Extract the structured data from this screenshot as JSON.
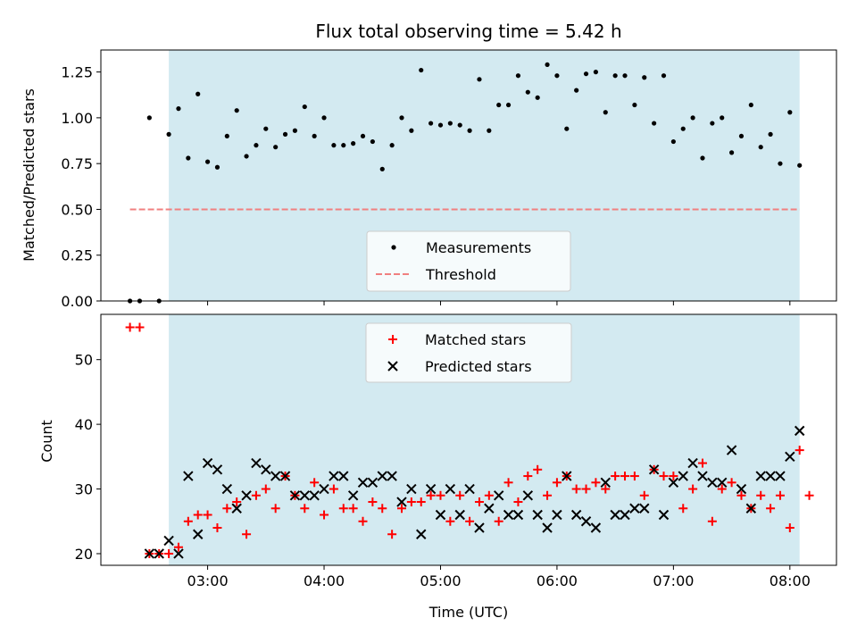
{
  "chart_data": [
    {
      "type": "scatter",
      "title": "Flux total observing time = 5.42 h",
      "xlabel": "",
      "ylabel": "Matched/Predicted stars",
      "x_unit": "time (UTC)",
      "xlim": [
        "02:05",
        "08:24"
      ],
      "ylim": [
        0,
        1.37
      ],
      "x_ticks": [
        "03:00",
        "04:00",
        "05:00",
        "06:00",
        "07:00",
        "08:00"
      ],
      "y_ticks": [
        "0.00",
        "0.25",
        "0.50",
        "0.75",
        "1.00",
        "1.25"
      ],
      "observing_window": [
        "02:40",
        "08:05"
      ],
      "window_color": "#d3eaf1",
      "threshold": {
        "name": "Threshold",
        "value": 0.5,
        "x_range": [
          "02:20",
          "08:05"
        ],
        "color": "#f08080"
      },
      "legend": {
        "placement": "lower-center",
        "entries": [
          "Measurements",
          "Threshold"
        ]
      },
      "series": [
        {
          "name": "Measurements",
          "color": "#000000",
          "points": [
            [
              "02:20",
              0.0
            ],
            [
              "02:25",
              0.0
            ],
            [
              "02:30",
              1.0
            ],
            [
              "02:35",
              0.0
            ],
            [
              "02:40",
              0.91
            ],
            [
              "02:45",
              1.05
            ],
            [
              "02:50",
              0.78
            ],
            [
              "02:55",
              1.13
            ],
            [
              "03:00",
              0.76
            ],
            [
              "03:05",
              0.73
            ],
            [
              "03:10",
              0.9
            ],
            [
              "03:15",
              1.04
            ],
            [
              "03:20",
              0.79
            ],
            [
              "03:25",
              0.85
            ],
            [
              "03:30",
              0.94
            ],
            [
              "03:35",
              0.84
            ],
            [
              "03:40",
              0.91
            ],
            [
              "03:45",
              0.93
            ],
            [
              "03:50",
              1.06
            ],
            [
              "03:55",
              0.9
            ],
            [
              "04:00",
              1.0
            ],
            [
              "04:05",
              0.85
            ],
            [
              "04:10",
              0.85
            ],
            [
              "04:15",
              0.86
            ],
            [
              "04:20",
              0.9
            ],
            [
              "04:25",
              0.87
            ],
            [
              "04:30",
              0.72
            ],
            [
              "04:35",
              0.85
            ],
            [
              "04:40",
              1.0
            ],
            [
              "04:45",
              0.93
            ],
            [
              "04:50",
              1.26
            ],
            [
              "04:55",
              0.97
            ],
            [
              "05:00",
              0.96
            ],
            [
              "05:05",
              0.97
            ],
            [
              "05:10",
              0.96
            ],
            [
              "05:15",
              0.93
            ],
            [
              "05:20",
              1.21
            ],
            [
              "05:25",
              0.93
            ],
            [
              "05:30",
              1.07
            ],
            [
              "05:35",
              1.07
            ],
            [
              "05:40",
              1.23
            ],
            [
              "05:45",
              1.14
            ],
            [
              "05:50",
              1.11
            ],
            [
              "05:55",
              1.29
            ],
            [
              "06:00",
              1.23
            ],
            [
              "06:05",
              0.94
            ],
            [
              "06:10",
              1.15
            ],
            [
              "06:15",
              1.24
            ],
            [
              "06:20",
              1.25
            ],
            [
              "06:25",
              1.03
            ],
            [
              "06:30",
              1.23
            ],
            [
              "06:35",
              1.23
            ],
            [
              "06:40",
              1.07
            ],
            [
              "06:45",
              1.22
            ],
            [
              "06:50",
              0.97
            ],
            [
              "06:55",
              1.23
            ],
            [
              "07:00",
              0.87
            ],
            [
              "07:05",
              0.94
            ],
            [
              "07:10",
              1.0
            ],
            [
              "07:15",
              0.78
            ],
            [
              "07:20",
              0.97
            ],
            [
              "07:25",
              1.0
            ],
            [
              "07:30",
              0.81
            ],
            [
              "07:35",
              0.9
            ],
            [
              "07:40",
              1.07
            ],
            [
              "07:45",
              0.84
            ],
            [
              "07:50",
              0.91
            ],
            [
              "07:55",
              0.75
            ],
            [
              "08:00",
              1.03
            ],
            [
              "08:05",
              0.74
            ]
          ]
        }
      ]
    },
    {
      "type": "scatter",
      "title": "",
      "xlabel": "Time (UTC)",
      "ylabel": "Count",
      "xlim": [
        "02:05",
        "08:24"
      ],
      "ylim": [
        18.2,
        57
      ],
      "x_ticks": [
        "03:00",
        "04:00",
        "05:00",
        "06:00",
        "07:00",
        "08:00"
      ],
      "y_ticks": [
        "20",
        "30",
        "40",
        "50"
      ],
      "observing_window": [
        "02:40",
        "08:05"
      ],
      "window_color": "#d3eaf1",
      "legend": {
        "placement": "upper-center",
        "entries": [
          "Matched stars",
          "Predicted stars"
        ]
      },
      "series": [
        {
          "name": "Matched stars",
          "marker": "plus",
          "color": "#ff0000",
          "points": [
            [
              "02:20",
              55
            ],
            [
              "02:25",
              55
            ],
            [
              "02:30",
              20
            ],
            [
              "02:35",
              20
            ],
            [
              "02:40",
              20
            ],
            [
              "02:45",
              21
            ],
            [
              "02:50",
              25
            ],
            [
              "02:55",
              26
            ],
            [
              "03:00",
              26
            ],
            [
              "03:05",
              24
            ],
            [
              "03:10",
              27
            ],
            [
              "03:15",
              28
            ],
            [
              "03:20",
              23
            ],
            [
              "03:25",
              29
            ],
            [
              "03:30",
              30
            ],
            [
              "03:35",
              27
            ],
            [
              "03:40",
              32
            ],
            [
              "03:45",
              29
            ],
            [
              "03:50",
              27
            ],
            [
              "03:55",
              31
            ],
            [
              "04:00",
              26
            ],
            [
              "04:05",
              30
            ],
            [
              "04:10",
              27
            ],
            [
              "04:15",
              27
            ],
            [
              "04:20",
              25
            ],
            [
              "04:25",
              28
            ],
            [
              "04:30",
              27
            ],
            [
              "04:35",
              23
            ],
            [
              "04:40",
              27
            ],
            [
              "04:45",
              28
            ],
            [
              "04:50",
              28
            ],
            [
              "04:55",
              29
            ],
            [
              "05:00",
              29
            ],
            [
              "05:05",
              25
            ],
            [
              "05:10",
              29
            ],
            [
              "05:15",
              25
            ],
            [
              "05:20",
              28
            ],
            [
              "05:25",
              29
            ],
            [
              "05:30",
              25
            ],
            [
              "05:35",
              31
            ],
            [
              "05:40",
              28
            ],
            [
              "05:45",
              32
            ],
            [
              "05:50",
              33
            ],
            [
              "05:55",
              29
            ],
            [
              "06:00",
              31
            ],
            [
              "06:05",
              32
            ],
            [
              "06:10",
              30
            ],
            [
              "06:15",
              30
            ],
            [
              "06:20",
              31
            ],
            [
              "06:25",
              30
            ],
            [
              "06:30",
              32
            ],
            [
              "06:35",
              32
            ],
            [
              "06:40",
              32
            ],
            [
              "06:45",
              29
            ],
            [
              "06:50",
              33
            ],
            [
              "06:55",
              32
            ],
            [
              "07:00",
              32
            ],
            [
              "07:05",
              27
            ],
            [
              "07:10",
              30
            ],
            [
              "07:15",
              34
            ],
            [
              "07:20",
              25
            ],
            [
              "07:25",
              30
            ],
            [
              "07:30",
              31
            ],
            [
              "07:35",
              29
            ],
            [
              "07:40",
              27
            ],
            [
              "07:45",
              29
            ],
            [
              "07:50",
              27
            ],
            [
              "07:55",
              29
            ],
            [
              "08:00",
              24
            ],
            [
              "08:05",
              36
            ],
            [
              "08:10",
              29
            ]
          ]
        },
        {
          "name": "Predicted stars",
          "marker": "x",
          "color": "#000000",
          "points": [
            [
              "02:30",
              20
            ],
            [
              "02:35",
              20
            ],
            [
              "02:40",
              22
            ],
            [
              "02:45",
              20
            ],
            [
              "02:50",
              32
            ],
            [
              "02:55",
              23
            ],
            [
              "03:00",
              34
            ],
            [
              "03:05",
              33
            ],
            [
              "03:10",
              30
            ],
            [
              "03:15",
              27
            ],
            [
              "03:20",
              29
            ],
            [
              "03:25",
              34
            ],
            [
              "03:30",
              33
            ],
            [
              "03:35",
              32
            ],
            [
              "03:40",
              32
            ],
            [
              "03:45",
              29
            ],
            [
              "03:50",
              29
            ],
            [
              "03:55",
              29
            ],
            [
              "04:00",
              30
            ],
            [
              "04:05",
              32
            ],
            [
              "04:10",
              32
            ],
            [
              "04:15",
              29
            ],
            [
              "04:20",
              31
            ],
            [
              "04:25",
              31
            ],
            [
              "04:30",
              32
            ],
            [
              "04:35",
              32
            ],
            [
              "04:40",
              28
            ],
            [
              "04:45",
              30
            ],
            [
              "04:50",
              23
            ],
            [
              "04:55",
              30
            ],
            [
              "05:00",
              26
            ],
            [
              "05:05",
              30
            ],
            [
              "05:10",
              26
            ],
            [
              "05:15",
              30
            ],
            [
              "05:20",
              24
            ],
            [
              "05:25",
              27
            ],
            [
              "05:30",
              29
            ],
            [
              "05:35",
              26
            ],
            [
              "05:40",
              26
            ],
            [
              "05:45",
              29
            ],
            [
              "05:50",
              26
            ],
            [
              "05:55",
              24
            ],
            [
              "06:00",
              26
            ],
            [
              "06:05",
              32
            ],
            [
              "06:10",
              26
            ],
            [
              "06:15",
              25
            ],
            [
              "06:20",
              24
            ],
            [
              "06:25",
              31
            ],
            [
              "06:30",
              26
            ],
            [
              "06:35",
              26
            ],
            [
              "06:40",
              27
            ],
            [
              "06:45",
              27
            ],
            [
              "06:50",
              33
            ],
            [
              "06:55",
              26
            ],
            [
              "07:00",
              31
            ],
            [
              "07:05",
              32
            ],
            [
              "07:10",
              34
            ],
            [
              "07:15",
              32
            ],
            [
              "07:20",
              31
            ],
            [
              "07:25",
              31
            ],
            [
              "07:30",
              36
            ],
            [
              "07:35",
              30
            ],
            [
              "07:40",
              27
            ],
            [
              "07:45",
              32
            ],
            [
              "07:50",
              32
            ],
            [
              "07:55",
              32
            ],
            [
              "08:00",
              35
            ],
            [
              "08:05",
              39
            ]
          ]
        }
      ]
    }
  ]
}
